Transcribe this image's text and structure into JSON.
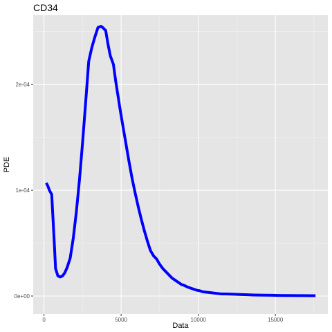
{
  "chart_data": {
    "type": "line",
    "title": "CD34",
    "xlabel": "Data",
    "ylabel": "PDE",
    "xlim": [
      -700,
      18400
    ],
    "ylim": [
      -1.7e-05,
      0.0002655
    ],
    "x_ticks": [
      0,
      5000,
      10000,
      15000
    ],
    "x_tick_labels": [
      "0",
      "5000",
      "10000",
      "15000"
    ],
    "y_ticks": [
      0,
      0.0001,
      0.0002
    ],
    "y_tick_labels": [
      "0e+00",
      "1e-04",
      "2e-04"
    ],
    "grid": true,
    "legend": "none",
    "colors": {
      "line": "#0000ff",
      "panel_background": "#e5e5e5",
      "grid_major": "#ffffff",
      "grid_minor": "#f2f2f2",
      "tick_label": "#4d4d4d"
    },
    "series": [
      {
        "x": [
          150,
          250,
          350,
          500,
          650,
          750,
          900,
          1050,
          1200,
          1350,
          1500,
          1700,
          1900,
          2100,
          2300,
          2500,
          2700,
          2900,
          3100,
          3300,
          3500,
          3700,
          3800,
          4000,
          4150,
          4300,
          4500,
          4650,
          4800,
          4950,
          5100,
          5300,
          5500,
          5700,
          5900,
          6100,
          6300,
          6500,
          6700,
          6900,
          7100,
          7300,
          7500,
          7700,
          7900,
          8100,
          8300,
          8500,
          8700,
          8900,
          9100,
          9300,
          9500,
          9700,
          9900,
          10100,
          10300,
          10600,
          10900,
          11200,
          11500,
          11800,
          12100,
          12400,
          12800,
          13200,
          13600,
          14000,
          14400,
          14800,
          15200,
          15600,
          16000,
          16400,
          16800,
          17200,
          17600
        ],
        "values": [
          0.000107,
          0.000104,
          0.0001,
          9.6e-05,
          5.5e-05,
          2.6e-05,
          1.9e-05,
          1.8e-05,
          1.9e-05,
          2.2e-05,
          2.7e-05,
          3.6e-05,
          5.5e-05,
          8e-05,
          0.00011,
          0.000145,
          0.000183,
          0.000222,
          0.000235,
          0.000245,
          0.000254,
          0.000255,
          0.000254,
          0.000251,
          0.000238,
          0.000227,
          0.000219,
          0.000203,
          0.000189,
          0.000175,
          0.000162,
          0.000145,
          0.000128,
          0.000112,
          9.8e-05,
          8.5e-05,
          7.3e-05,
          6.2e-05,
          5.2e-05,
          4.3e-05,
          3.8e-05,
          3.5e-05,
          3e-05,
          2.6e-05,
          2.3e-05,
          2e-05,
          1.7e-05,
          1.5e-05,
          1.3e-05,
          1.1e-05,
          1e-05,
          8.5e-06,
          7.5e-06,
          6.5e-06,
          5.5e-06,
          5e-06,
          4e-06,
          3.5e-06,
          3e-06,
          2.5e-06,
          2e-06,
          2e-06,
          1.8e-06,
          1.6e-06,
          1.4e-06,
          1.2e-06,
          1e-06,
          9e-07,
          8e-07,
          7e-07,
          6e-07,
          5e-07,
          5e-07,
          4e-07,
          4e-07,
          3e-07,
          3e-07
        ]
      }
    ]
  }
}
